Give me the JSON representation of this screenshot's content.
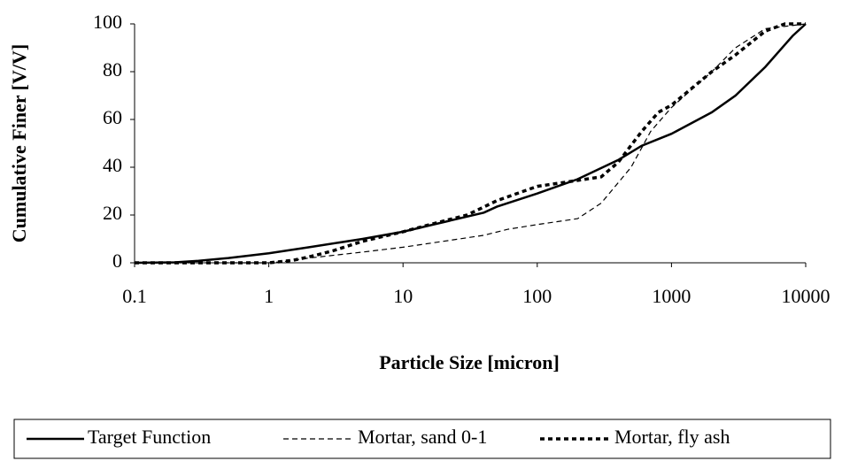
{
  "chart_data": {
    "type": "line",
    "xlabel": "Particle Size [micron]",
    "ylabel": "Cumulative Finer [V/V]",
    "xscale": "log",
    "xlim": [
      0.1,
      10000
    ],
    "xticks": [
      0.1,
      1,
      10,
      100,
      1000,
      10000
    ],
    "ylim": [
      0,
      100
    ],
    "yticks": [
      0,
      20,
      40,
      60,
      80,
      100
    ],
    "grid": false,
    "legend": "bottom",
    "series": [
      {
        "name": "Target Function",
        "color": "#000000",
        "style": "solid",
        "x": [
          0.1,
          0.2,
          0.3,
          0.5,
          1,
          2,
          5,
          10,
          20,
          40,
          50,
          100,
          200,
          400,
          600,
          1000,
          2000,
          3000,
          5000,
          8000,
          10000
        ],
        "values": [
          0,
          0.2,
          0.8,
          2,
          4,
          6.5,
          10,
          13,
          17,
          21,
          23.5,
          29,
          35,
          43,
          49,
          54,
          63,
          70,
          82,
          95,
          100
        ]
      },
      {
        "name": "Mortar, sand 0-1",
        "color": "#000000",
        "style": "dashed",
        "x": [
          0.1,
          1,
          1.3,
          2,
          5,
          10,
          20,
          40,
          60,
          100,
          200,
          300,
          500,
          700,
          1000,
          2000,
          3000,
          5000,
          10000
        ],
        "values": [
          0,
          0,
          0.5,
          2,
          4.5,
          6.5,
          9,
          11.5,
          14,
          16,
          18.5,
          25,
          40,
          55,
          65,
          80,
          90,
          98,
          100
        ]
      },
      {
        "name": "Mortar, fly ash",
        "color": "#000000",
        "style": "dotted",
        "x": [
          0.1,
          1,
          1.5,
          2,
          3,
          5,
          10,
          20,
          30,
          50,
          100,
          200,
          300,
          400,
          600,
          800,
          1000,
          2000,
          3000,
          5000,
          7000,
          10000
        ],
        "values": [
          0,
          0,
          1,
          2.5,
          5,
          9,
          13,
          17.5,
          20,
          26,
          32,
          34.5,
          36,
          42,
          55,
          63,
          66,
          80,
          87,
          97,
          100,
          100
        ]
      }
    ]
  }
}
